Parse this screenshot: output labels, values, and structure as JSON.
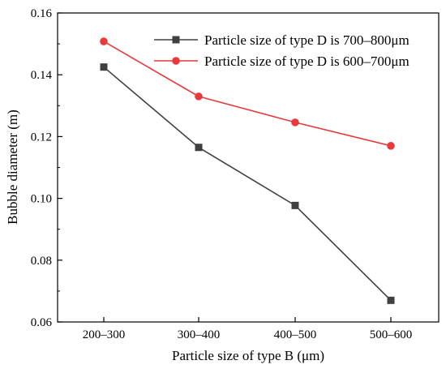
{
  "chart_data": {
    "type": "line",
    "categories": [
      "200–300",
      "300–400",
      "400–500",
      "500–600"
    ],
    "xlabel": "Particle size of type B (μm)",
    "ylabel": "Bubble diameter (m)",
    "ylim": [
      0.06,
      0.16
    ],
    "yticks": [
      "0.06",
      "0.08",
      "0.10",
      "0.12",
      "0.14",
      "0.16"
    ],
    "legend_position": "top-right",
    "grid": false,
    "series": [
      {
        "name": "Particle size of type D is 700–800μm",
        "color": "#404040",
        "marker": "square",
        "values": [
          0.1425,
          0.1165,
          0.0977,
          0.067
        ]
      },
      {
        "name": "Particle size of type D is 600–700μm",
        "color": "#e8393b",
        "marker": "circle",
        "values": [
          0.1508,
          0.133,
          0.1246,
          0.117
        ]
      }
    ]
  }
}
